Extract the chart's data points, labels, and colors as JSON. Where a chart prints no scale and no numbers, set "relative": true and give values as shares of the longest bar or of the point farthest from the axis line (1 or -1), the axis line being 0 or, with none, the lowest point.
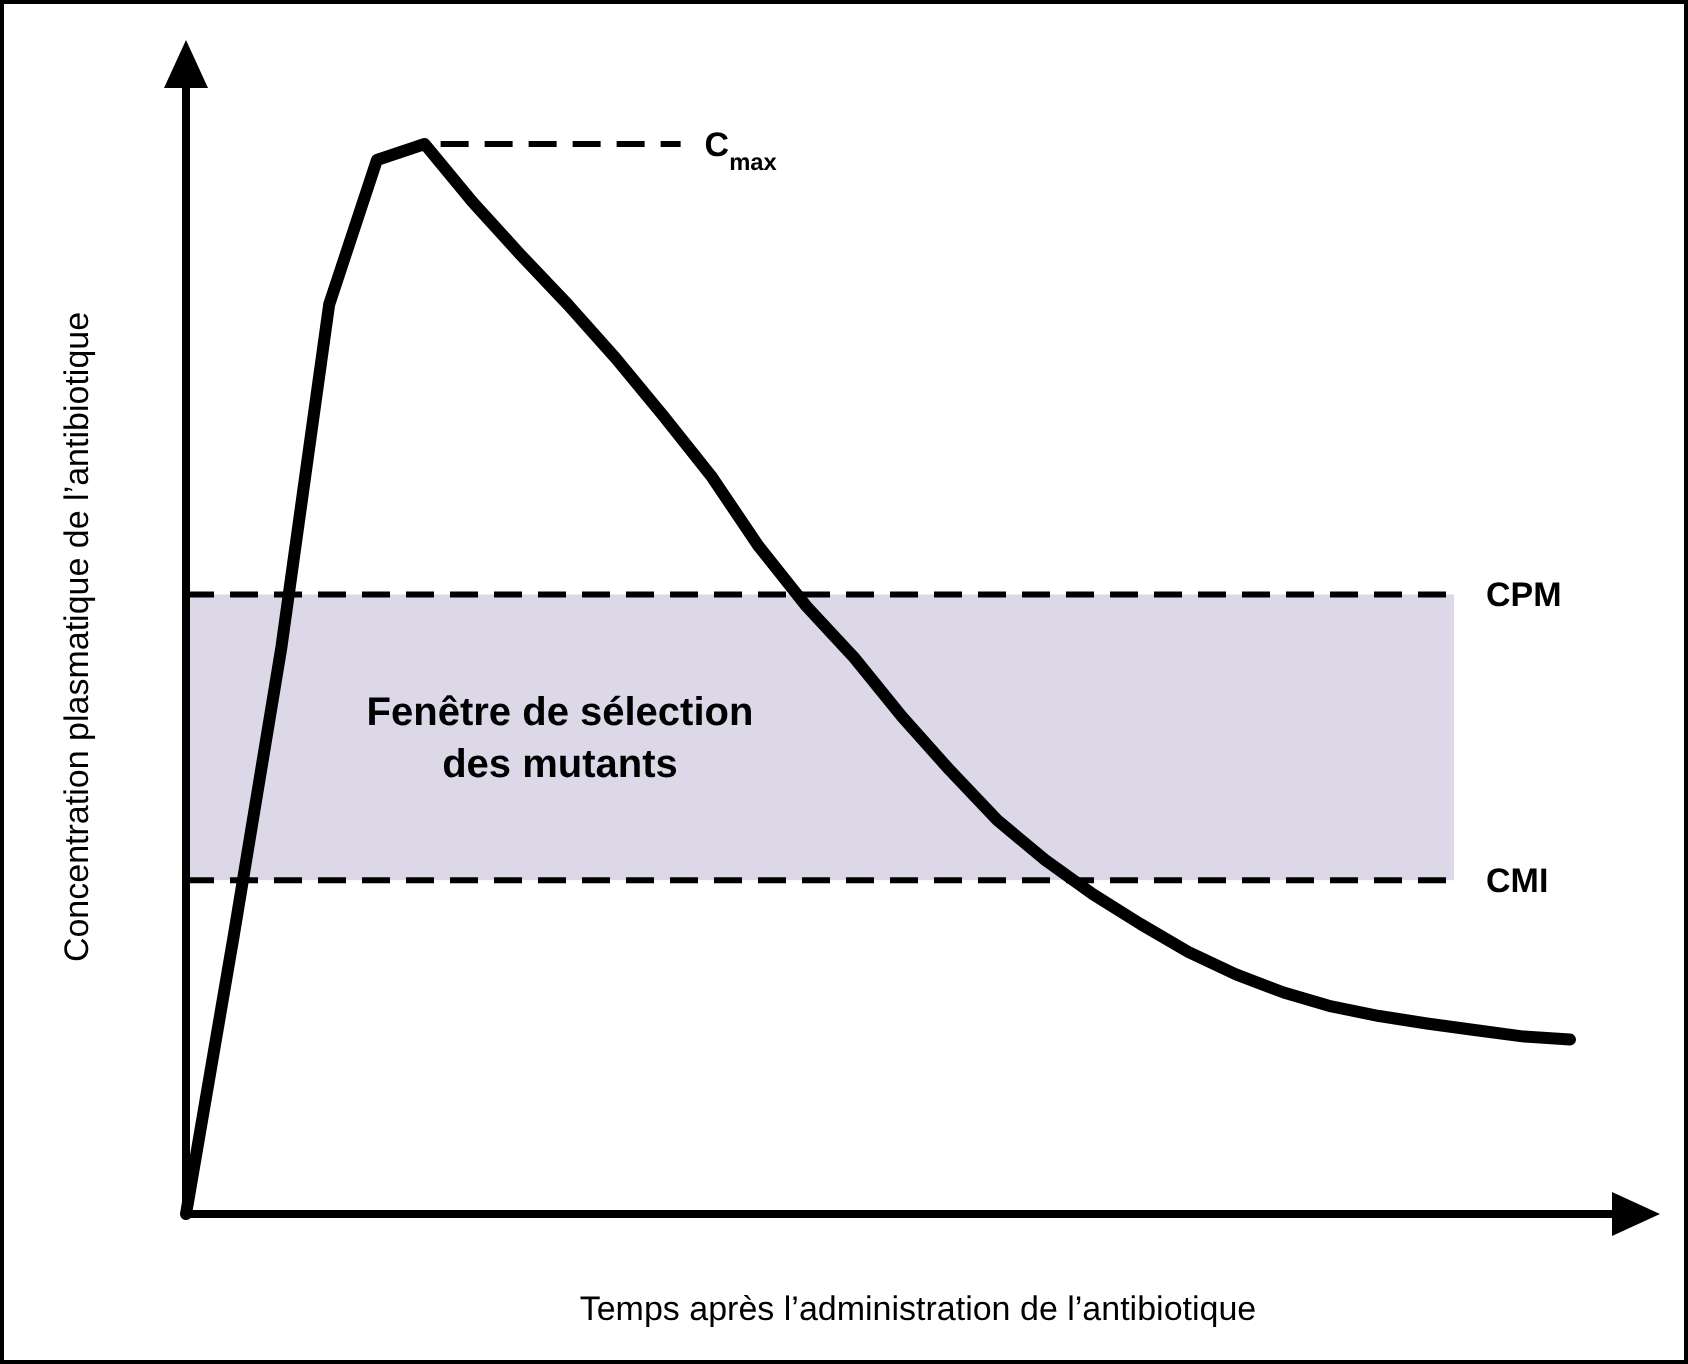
{
  "chart_data": {
    "type": "line",
    "relative": true,
    "xlabel": "Temps après l’administration de l’antibiotique",
    "ylabel": "Concentration plasmatique de l’antibiotique",
    "categories": [
      null,
      null,
      null,
      null,
      null,
      null,
      null,
      null,
      null,
      null,
      null,
      null,
      null,
      null,
      null,
      null,
      null,
      null,
      null,
      null,
      null,
      null,
      null,
      null,
      null,
      null,
      null,
      null,
      null,
      null
    ],
    "series": [
      {
        "color": "#000000",
        "values": [
          0,
          0.26,
          0.53,
          0.85,
          0.985,
          1,
          0.946,
          0.897,
          0.85,
          0.8,
          0.746,
          0.69,
          0.624,
          0.568,
          0.52,
          0.465,
          0.415,
          0.368,
          0.331,
          0.299,
          0.271,
          0.245,
          0.224,
          0.207,
          0.194,
          0.185,
          0.178,
          0.172,
          0.166,
          0.163
        ]
      }
    ],
    "ref_lines": [
      {
        "axis": "y",
        "value": 1,
        "label": "C$_{max}$",
        "line_style": "dashed",
        "color": "#000000"
      },
      {
        "axis": "y",
        "value": 0.579,
        "label": "CPM",
        "line_style": "dashed",
        "color": "#000000"
      },
      {
        "axis": "y",
        "value": 0.312,
        "label": "CMI",
        "line_style": "dashed",
        "color": "#000000"
      }
    ],
    "bands": [
      {
        "axis": "y",
        "from": 0.312,
        "to": 0.579,
        "label": "Fenêtre de sélection\ndes mutants",
        "color": "#dcd8e8"
      }
    ],
    "line_style": "solid"
  }
}
